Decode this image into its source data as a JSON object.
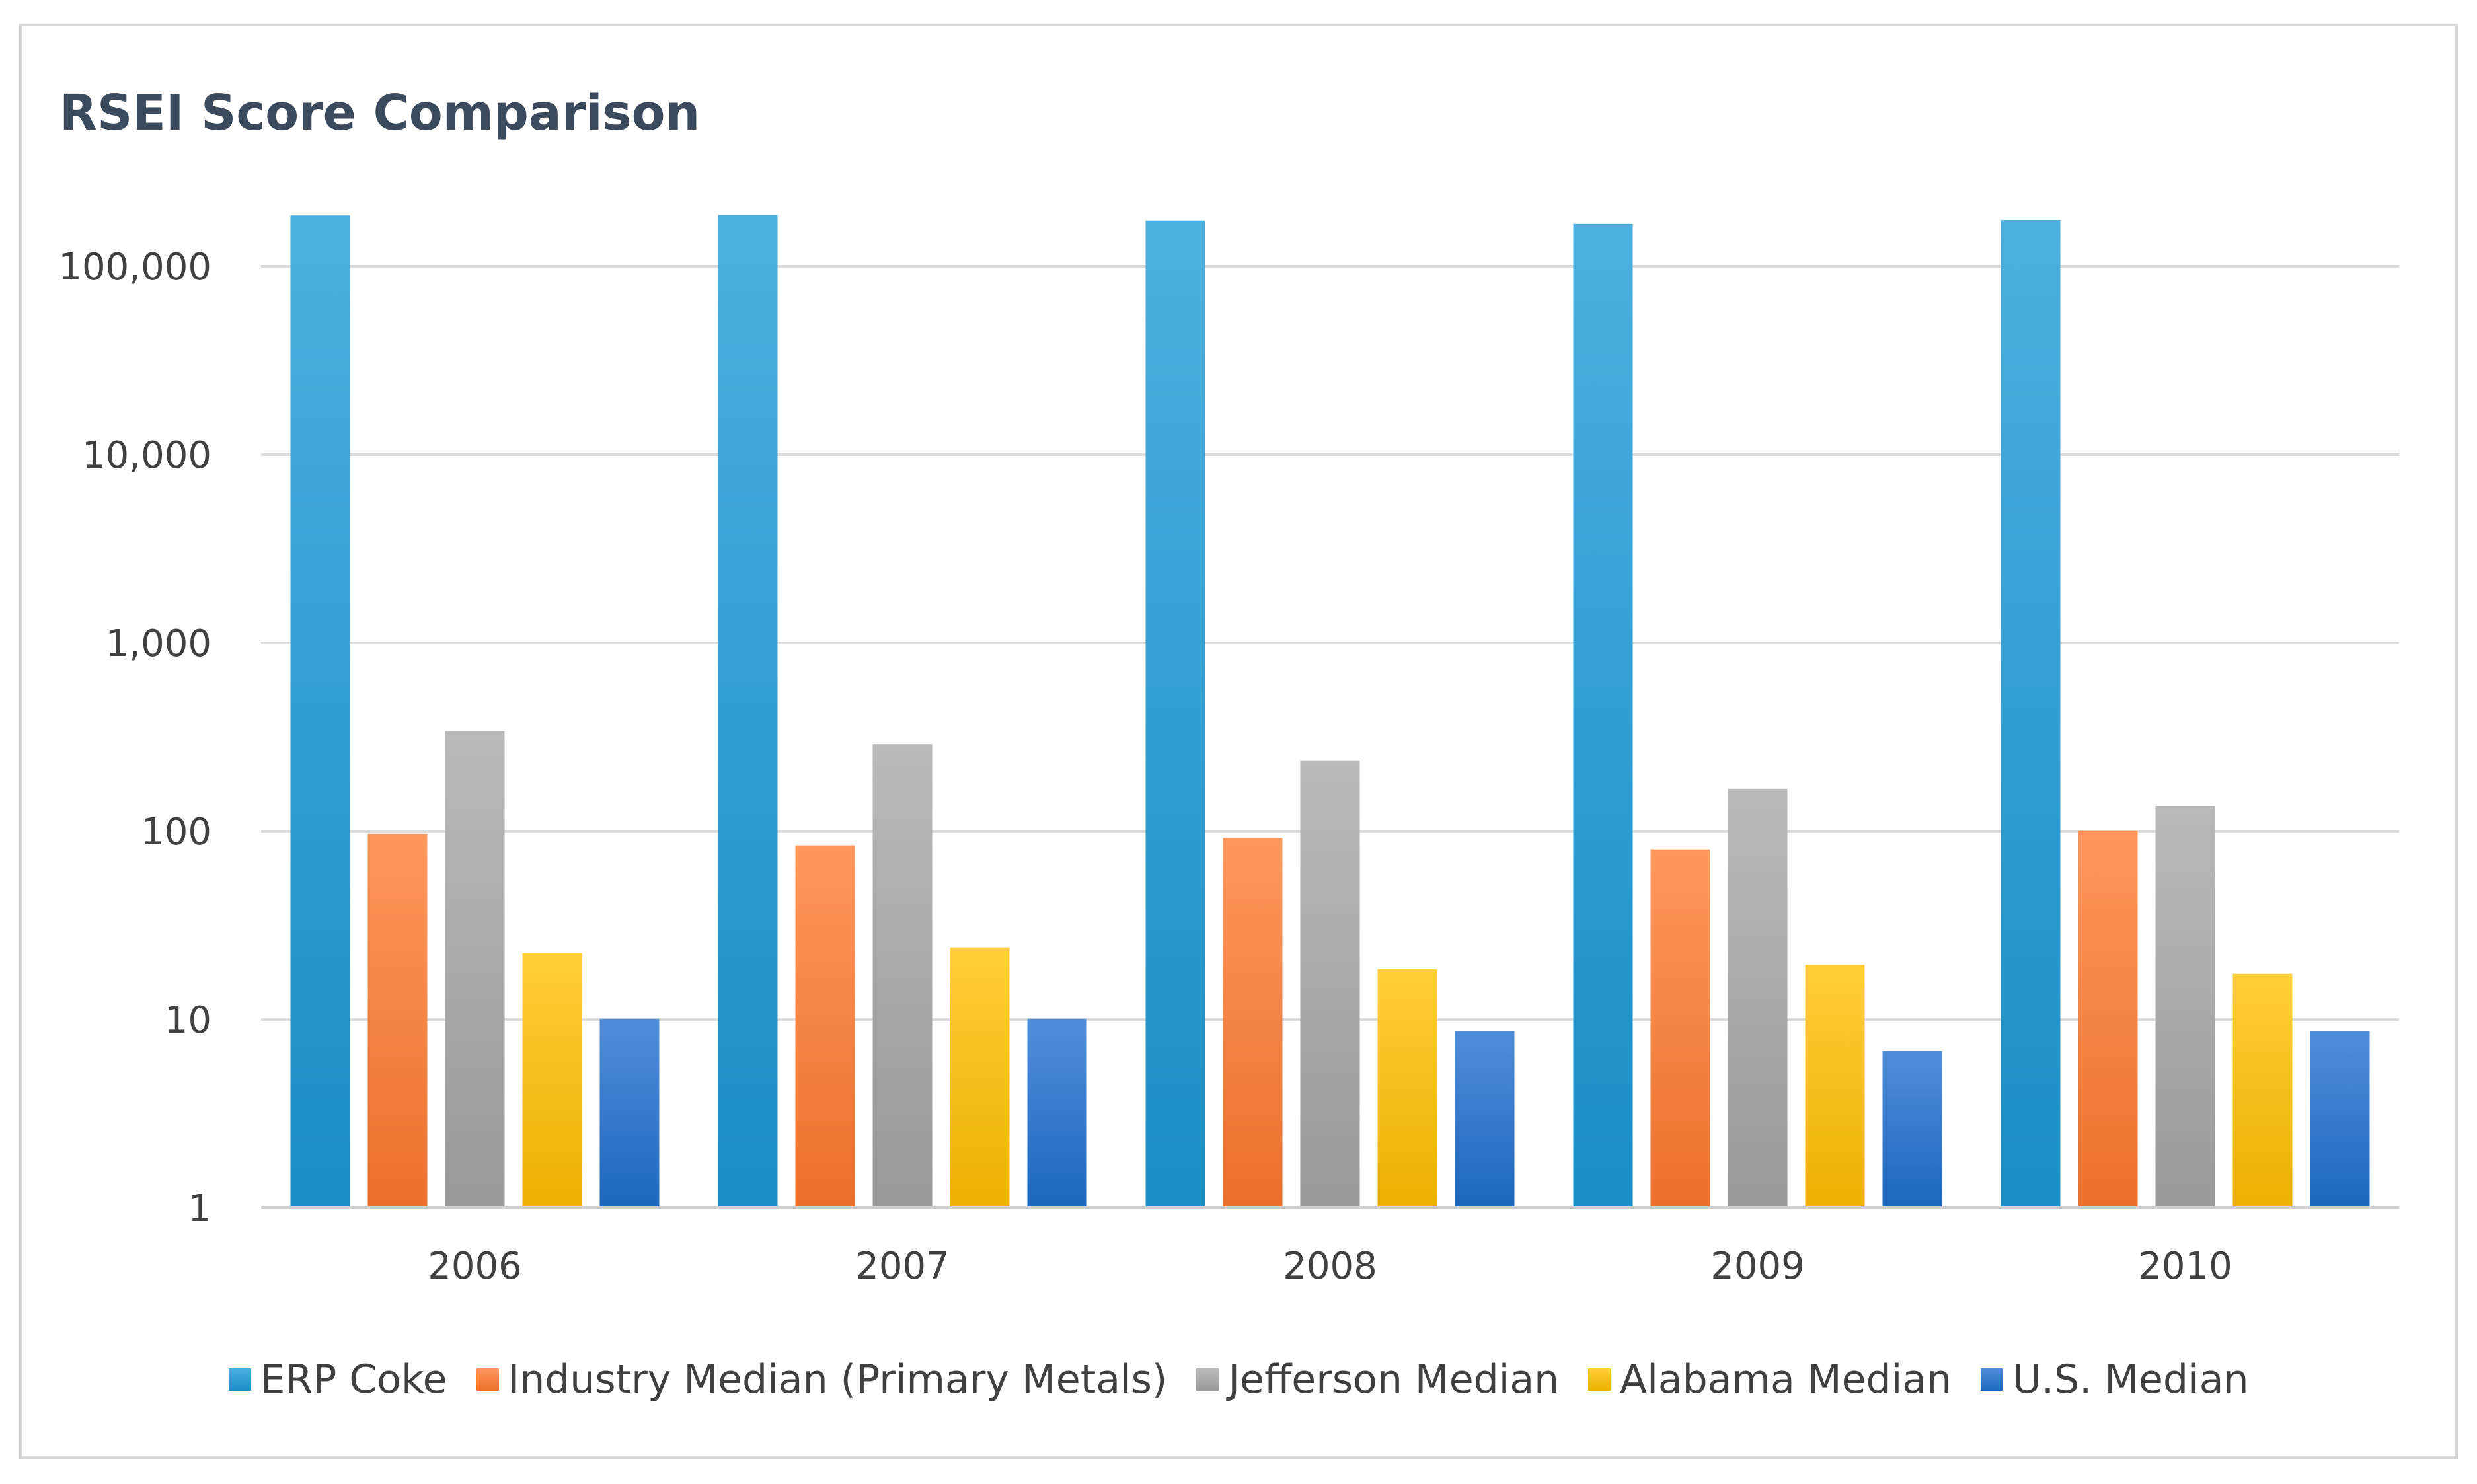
{
  "chart_data": {
    "type": "bar",
    "title": "RSEI Score Comparison",
    "xlabel": "",
    "ylabel": "",
    "yscale": "log",
    "ylim": [
      1,
      200000
    ],
    "ytick_values": [
      1,
      10,
      100,
      1000,
      10000,
      100000
    ],
    "ytick_labels": [
      "1",
      "10",
      "100",
      "1,000",
      "10,000",
      "100,000"
    ],
    "categories": [
      "2006",
      "2007",
      "2008",
      "2009",
      "2010"
    ],
    "series": [
      {
        "name": "ERP Coke",
        "color": "#1a9ad6",
        "values": [
          186000,
          187000,
          175000,
          168000,
          176000
        ]
      },
      {
        "name": "Industry Median (Primary Metals)",
        "color": "#ff7a2f",
        "values": [
          97,
          84,
          92,
          80,
          101
        ]
      },
      {
        "name": "Jefferson Median",
        "color": "#a6a6a6",
        "values": [
          340,
          290,
          238,
          168,
          136
        ]
      },
      {
        "name": "Alabama Median",
        "color": "#ffc000",
        "values": [
          22.5,
          24,
          18.5,
          19.5,
          17.5
        ]
      },
      {
        "name": "U.S. Median",
        "color": "#1f6fd0",
        "values": [
          10.1,
          10.1,
          8.7,
          6.8,
          8.7
        ]
      }
    ],
    "legend_position": "bottom",
    "grid": true
  }
}
